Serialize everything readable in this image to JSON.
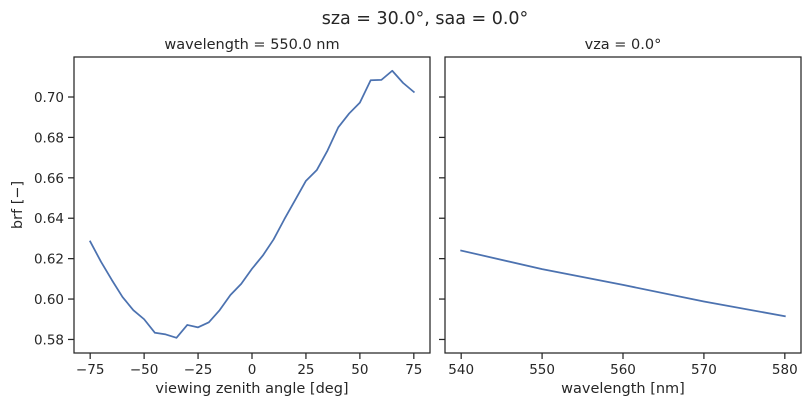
{
  "figure": {
    "suptitle": "sza = 30.0°, saa = 0.0°",
    "line_color": "#4c72b0"
  },
  "chart_data": [
    {
      "type": "line",
      "title": "wavelength = 550.0 nm",
      "xlabel": "viewing zenith angle [deg]",
      "ylabel": "brf [−]",
      "xlim": [
        -82.5,
        82.5
      ],
      "ylim": [
        0.5733,
        0.7198
      ],
      "xticks": [
        -75,
        -50,
        -25,
        0,
        25,
        50,
        75
      ],
      "xtick_labels": [
        "−75",
        "−50",
        "−25",
        "0",
        "25",
        "50",
        "75"
      ],
      "yticks": [
        0.58,
        0.6,
        0.62,
        0.64,
        0.66,
        0.68,
        0.7
      ],
      "ytick_labels": [
        "0.58",
        "0.60",
        "0.62",
        "0.64",
        "0.66",
        "0.68",
        "0.70"
      ],
      "grid": false,
      "series": [
        {
          "x": [
            -75,
            -70,
            -65,
            -60,
            -55,
            -50,
            -45,
            -40,
            -35,
            -30,
            -25,
            -20,
            -15,
            -10,
            -5,
            0,
            5,
            10,
            15,
            20,
            25,
            30,
            35,
            40,
            45,
            50,
            55,
            60,
            65,
            70,
            75
          ],
          "y": [
            0.6285,
            0.6185,
            0.6095,
            0.601,
            0.5945,
            0.59,
            0.5833,
            0.5825,
            0.5808,
            0.5872,
            0.586,
            0.5885,
            0.5945,
            0.602,
            0.6075,
            0.615,
            0.6215,
            0.6295,
            0.6395,
            0.649,
            0.6585,
            0.6638,
            0.6735,
            0.685,
            0.6918,
            0.6972,
            0.7083,
            0.7085,
            0.713,
            0.707,
            0.7025
          ]
        }
      ]
    },
    {
      "type": "line",
      "title": "vza = 0.0°",
      "xlabel": "wavelength [nm]",
      "ylabel": "",
      "xlim": [
        538,
        582
      ],
      "ylim": [
        0.5733,
        0.7198
      ],
      "xticks": [
        540,
        550,
        560,
        570,
        580
      ],
      "xtick_labels": [
        "540",
        "550",
        "560",
        "570",
        "580"
      ],
      "yticks": [
        0.58,
        0.6,
        0.62,
        0.64,
        0.66,
        0.68,
        0.7
      ],
      "ytick_labels": [
        "",
        "",
        "",
        "",
        "",
        "",
        ""
      ],
      "grid": false,
      "series": [
        {
          "x": [
            540,
            550,
            560,
            570,
            580
          ],
          "y": [
            0.624,
            0.6148,
            0.607,
            0.5988,
            0.5915
          ]
        }
      ]
    }
  ]
}
